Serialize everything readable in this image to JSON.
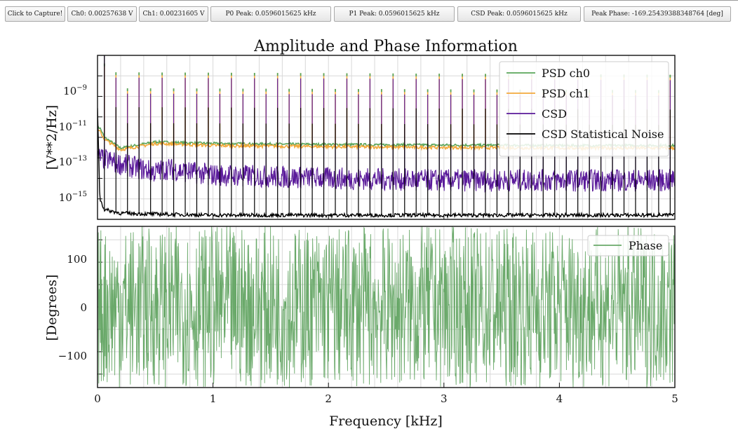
{
  "toolbar": {
    "capture_label": "Click to Capture!",
    "ch0_label": "Ch0: 0.00257638 V",
    "ch1_label": "Ch1: 0.00231605 V",
    "p0_peak_label": "P0 Peak: 0.0596015625 kHz",
    "p1_peak_label": "P1 Peak: 0.0596015625 kHz",
    "csd_peak_label": "CSD Peak: 0.0596015625 kHz",
    "peak_phase_label": "Peak Phase: -169.25439388348764 [deg]"
  },
  "colors": {
    "psd_ch0": "#5aa55a",
    "psd_ch1": "#f2a93b",
    "csd": "#5a1a9a",
    "noise": "#000000",
    "phase": "#6aa96a"
  },
  "chart_data": [
    {
      "type": "line",
      "title": "Amplitude and Phase Information",
      "ylabel": "[V**2/Hz]",
      "xlabel": "",
      "yscale": "log",
      "xlim": [
        0,
        5
      ],
      "ylim": [
        1e-16,
        1e-08
      ],
      "yticks": [
        "10^-9",
        "10^-11",
        "10^-13",
        "10^-15"
      ],
      "grid": true,
      "legend_position": "top-right",
      "series": [
        {
          "name": "PSD ch0",
          "x": [
            0.02,
            0.06,
            0.2,
            0.5,
            1.0,
            2.0,
            3.0,
            4.0,
            5.0
          ],
          "y": [
            3e-12,
            1e-12,
            3e-13,
            6e-13,
            5e-13,
            4.5e-13,
            4.2e-13,
            4e-13,
            4e-13
          ]
        },
        {
          "name": "PSD ch1",
          "x": [
            0.02,
            0.06,
            0.2,
            0.5,
            1.0,
            2.0,
            3.0,
            4.0,
            5.0
          ],
          "y": [
            2e-12,
            8e-13,
            2.5e-13,
            5e-13,
            4e-13,
            3.5e-13,
            3.2e-13,
            3e-13,
            3e-13
          ]
        },
        {
          "name": "CSD",
          "x": [
            0.02,
            0.2,
            0.5,
            0.6,
            0.8,
            1.0,
            2.0,
            3.0,
            4.0,
            5.0
          ],
          "y": [
            1e-13,
            5e-14,
            2e-14,
            3e-14,
            2e-14,
            1.5e-14,
            1e-14,
            8e-15,
            8e-15,
            8e-15
          ]
        },
        {
          "name": "CSD Statistical Noise",
          "x": [
            0.0,
            0.02,
            0.06,
            0.2,
            0.5,
            1.0,
            2.0,
            3.0,
            4.0,
            5.0
          ],
          "y": [
            3e-11,
            1e-15,
            3e-16,
            2e-16,
            1.8e-16,
            1.6e-16,
            1.6e-16,
            1.6e-16,
            1.6e-16,
            1.6e-16
          ]
        }
      ],
      "peaks": {
        "first_x": 0.0596015625,
        "spacing": 0.1,
        "count": 50
      }
    },
    {
      "type": "line",
      "title": "",
      "ylabel": "[Degrees]",
      "xlabel": "Frequency [kHz]",
      "xlim": [
        0,
        5
      ],
      "ylim": [
        -180,
        180
      ],
      "yticks": [
        "100",
        "0",
        "−100"
      ],
      "xticks": [
        "0",
        "1",
        "2",
        "3",
        "4",
        "5"
      ],
      "grid": true,
      "legend_position": "top-right",
      "series": [
        {
          "name": "Phase",
          "range": [
            -180,
            180
          ]
        }
      ]
    }
  ]
}
